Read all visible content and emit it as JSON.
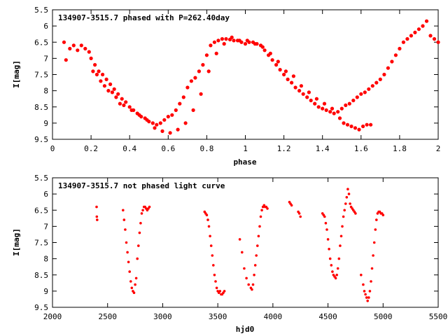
{
  "chart_data": [
    {
      "type": "scatter",
      "title": "134907-3515.7 phased with P=262.40day",
      "xlabel": "phase",
      "ylabel": "I[mag]",
      "xlim": [
        0,
        2
      ],
      "ylim": [
        9.5,
        5.5
      ],
      "y_inverted": true,
      "grid": false,
      "marker_color": "#ff0000",
      "x_ticks": [
        "0",
        "0.2",
        "0.4",
        "0.6",
        "0.8",
        "1",
        "1.2",
        "1.4",
        "1.6",
        "1.8",
        "2"
      ],
      "y_ticks": [
        "5.5",
        "6",
        "6.5",
        "7",
        "7.5",
        "8",
        "8.5",
        "9",
        "9.5"
      ],
      "series": [
        {
          "x": [
            0.06,
            0.07,
            0.09,
            0.11,
            0.13,
            0.15,
            0.17,
            0.19,
            0.2,
            0.22,
            0.24,
            0.26,
            0.28,
            0.3,
            0.32,
            0.34,
            0.36,
            0.38,
            0.4,
            0.42,
            0.44,
            0.46,
            0.48,
            0.5,
            0.52,
            0.54,
            0.56,
            0.58,
            0.6,
            0.62,
            0.64,
            0.66,
            0.68,
            0.7,
            0.72,
            0.74,
            0.76,
            0.78,
            0.8,
            0.82,
            0.84,
            0.86,
            0.88,
            0.9,
            0.92,
            0.94,
            0.96,
            0.98,
            1.0,
            1.02,
            1.04,
            1.06,
            1.08,
            1.1,
            1.12,
            1.14,
            1.16,
            1.18,
            1.2,
            1.22,
            1.24,
            1.26,
            1.28,
            1.3,
            1.32,
            1.34,
            1.36,
            1.38,
            1.4,
            1.42,
            1.44,
            1.46,
            1.48,
            1.5,
            1.52,
            1.54,
            1.56,
            1.58,
            1.6,
            1.62,
            1.64,
            1.66,
            1.68,
            1.7,
            1.72,
            1.74,
            1.76,
            1.78,
            1.8,
            1.82,
            1.84,
            1.86,
            1.88,
            1.9,
            1.92,
            1.94,
            1.96,
            1.98,
            2.0,
            0.21,
            0.23,
            0.25,
            0.27,
            0.29,
            0.31,
            0.33,
            0.35,
            0.37,
            0.41,
            0.45,
            0.49,
            0.53,
            0.57,
            0.61,
            0.65,
            0.69,
            0.73,
            0.77,
            0.81,
            0.85,
            0.89,
            0.93,
            0.97,
            1.01,
            1.05,
            1.09,
            1.13,
            1.17,
            1.21,
            1.25,
            1.29,
            1.33,
            1.37,
            1.41,
            1.45,
            1.49,
            1.51,
            1.53,
            1.55,
            1.57,
            1.59,
            1.61,
            1.63,
            1.65
          ],
          "y": [
            6.5,
            7.05,
            6.7,
            6.6,
            6.75,
            6.6,
            6.7,
            6.8,
            7.0,
            7.2,
            7.4,
            7.5,
            7.65,
            7.8,
            7.95,
            8.1,
            8.25,
            8.35,
            8.5,
            8.6,
            8.7,
            8.8,
            8.85,
            8.95,
            9.0,
            9.05,
            9.0,
            8.9,
            8.8,
            8.75,
            8.6,
            8.4,
            8.2,
            7.9,
            7.7,
            7.6,
            7.4,
            7.2,
            6.9,
            6.6,
            6.5,
            6.45,
            6.4,
            6.4,
            6.42,
            6.45,
            6.45,
            6.5,
            6.55,
            6.5,
            6.5,
            6.55,
            6.6,
            6.75,
            6.9,
            7.05,
            7.2,
            7.35,
            7.5,
            7.65,
            7.75,
            7.9,
            8.0,
            8.1,
            8.2,
            8.3,
            8.4,
            8.5,
            8.55,
            8.6,
            8.65,
            8.7,
            8.65,
            8.55,
            8.45,
            8.4,
            8.3,
            8.2,
            8.1,
            8.05,
            7.95,
            7.85,
            7.75,
            7.65,
            7.5,
            7.3,
            7.1,
            6.9,
            6.7,
            6.5,
            6.4,
            6.3,
            6.2,
            6.1,
            6.0,
            5.85,
            6.3,
            6.4,
            6.5,
            7.4,
            7.5,
            7.7,
            7.85,
            8.0,
            8.05,
            8.2,
            8.4,
            8.45,
            8.6,
            8.75,
            8.9,
            9.15,
            9.25,
            9.3,
            9.2,
            9.0,
            8.6,
            8.1,
            7.4,
            6.85,
            6.55,
            6.35,
            6.45,
            6.45,
            6.55,
            6.65,
            6.85,
            7.1,
            7.4,
            7.55,
            7.85,
            8.05,
            8.25,
            8.4,
            8.55,
            8.85,
            9.0,
            9.05,
            9.1,
            9.15,
            9.2,
            9.1,
            9.05,
            9.05
          ]
        }
      ]
    },
    {
      "type": "scatter",
      "title": "134907-3515.7 not phased light curve",
      "xlabel": "hjd0",
      "ylabel": "I[mag]",
      "xlim": [
        2000,
        5500
      ],
      "ylim": [
        9.5,
        5.5
      ],
      "y_inverted": true,
      "grid": false,
      "marker_color": "#ff0000",
      "x_ticks": [
        "2000",
        "2500",
        "3000",
        "3500",
        "4000",
        "4500",
        "5000",
        "5500"
      ],
      "y_ticks": [
        "5.5",
        "6",
        "6.5",
        "7",
        "7.5",
        "8",
        "8.5",
        "9",
        "9.5"
      ],
      "series": [
        {
          "x": [
            2400,
            2402,
            2405,
            2640,
            2650,
            2660,
            2670,
            2680,
            2690,
            2700,
            2710,
            2720,
            2730,
            2740,
            2750,
            2760,
            2770,
            2780,
            2790,
            2800,
            2810,
            2820,
            2830,
            2840,
            2850,
            2860,
            2870,
            2880,
            3380,
            3390,
            3400,
            3410,
            3420,
            3430,
            3440,
            3450,
            3460,
            3470,
            3480,
            3490,
            3500,
            3510,
            3520,
            3530,
            3540,
            3550,
            3560,
            3700,
            3720,
            3740,
            3760,
            3780,
            3800,
            3810,
            3820,
            3830,
            3840,
            3850,
            3860,
            3870,
            3880,
            3890,
            3900,
            3910,
            3920,
            3930,
            3940,
            3950,
            4150,
            4160,
            4170,
            4230,
            4240,
            4250,
            4450,
            4460,
            4470,
            4480,
            4490,
            4500,
            4510,
            4520,
            4530,
            4540,
            4550,
            4560,
            4570,
            4580,
            4590,
            4600,
            4610,
            4620,
            4630,
            4640,
            4650,
            4660,
            4670,
            4680,
            4690,
            4700,
            4710,
            4720,
            4730,
            4740,
            4750,
            4800,
            4820,
            4830,
            4840,
            4850,
            4860,
            4870,
            4880,
            4890,
            4900,
            4910,
            4920,
            4930,
            4940,
            4950,
            4960,
            4970,
            4980,
            4990,
            5000
          ],
          "y": [
            6.4,
            6.7,
            6.8,
            6.5,
            6.8,
            7.1,
            7.5,
            7.8,
            8.1,
            8.4,
            8.7,
            8.9,
            9.0,
            9.05,
            8.8,
            8.6,
            8.0,
            7.6,
            7.2,
            6.9,
            6.6,
            6.5,
            6.4,
            6.4,
            6.45,
            6.5,
            6.45,
            6.4,
            6.55,
            6.6,
            6.65,
            6.8,
            7.0,
            7.3,
            7.6,
            7.9,
            8.2,
            8.5,
            8.7,
            8.9,
            9.0,
            9.05,
            9.0,
            9.1,
            9.1,
            9.05,
            9.0,
            7.4,
            7.8,
            8.3,
            8.6,
            8.8,
            8.9,
            8.95,
            8.8,
            8.5,
            8.2,
            7.9,
            7.6,
            7.3,
            7.0,
            6.7,
            6.5,
            6.4,
            6.35,
            6.4,
            6.4,
            6.45,
            6.25,
            6.3,
            6.35,
            6.55,
            6.6,
            6.7,
            6.6,
            6.65,
            6.7,
            6.9,
            7.1,
            7.4,
            7.7,
            8.0,
            8.2,
            8.4,
            8.5,
            8.55,
            8.6,
            8.5,
            8.3,
            8.0,
            7.6,
            7.3,
            7.0,
            6.7,
            6.5,
            6.3,
            6.1,
            5.85,
            6.0,
            6.3,
            6.4,
            6.45,
            6.5,
            6.55,
            6.6,
            8.5,
            8.8,
            9.0,
            9.1,
            9.2,
            9.3,
            9.2,
            9.0,
            8.7,
            8.3,
            7.9,
            7.5,
            7.1,
            6.8,
            6.6,
            6.55,
            6.55,
            6.6,
            6.6,
            6.65
          ]
        }
      ]
    }
  ]
}
